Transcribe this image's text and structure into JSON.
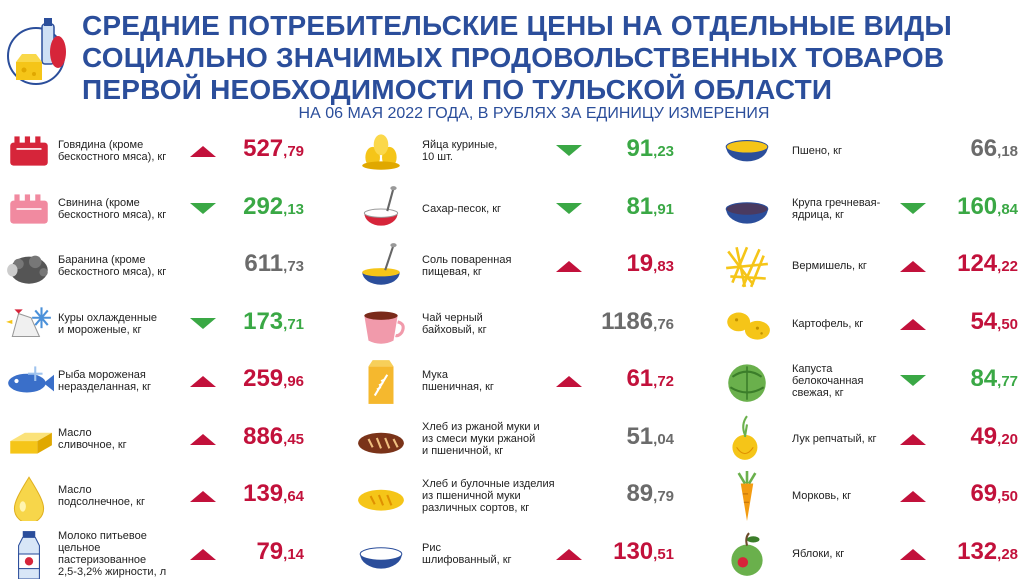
{
  "header": {
    "title_lines": [
      "СРЕДНИЕ ПОТРЕБИТЕЛЬСКИЕ ЦЕНЫ НА ОТДЕЛЬНЫЕ ВИДЫ",
      "СОЦИАЛЬНО ЗНАЧИМЫХ ПРОДОВОЛЬСТВЕННЫХ ТОВАРОВ",
      "ПЕРВОЙ НЕОБХОДИМОСТИ ПО ТУЛЬСКОЙ ОБЛАСТИ"
    ],
    "subtitle": "НА 06 МАЯ 2022 ГОДА, В РУБЛЯХ ЗА ЕДИНИЦУ ИЗМЕРЕНИЯ",
    "logo_icon": "groceries-icon"
  },
  "colors": {
    "title": "#2b4e9b",
    "up": "#c2113b",
    "down": "#3aa845",
    "same": "#6b6b6b"
  },
  "columns": [
    [
      {
        "label": "Говядина (кроме\nбескостного мяса), кг",
        "int": "527",
        "dec": "79",
        "trend": "up",
        "icon": "beef-icon"
      },
      {
        "label": "Свинина (кроме\nбескостного мяса), кг",
        "int": "292",
        "dec": "13",
        "trend": "down",
        "icon": "pork-icon"
      },
      {
        "label": "Баранина (кроме\nбескостного мяса), кг",
        "int": "611",
        "dec": "73",
        "trend": "same",
        "icon": "lamb-icon"
      },
      {
        "label": "Куры охлажденные\nи мороженые, кг",
        "int": "173",
        "dec": "71",
        "trend": "down",
        "icon": "chicken-icon"
      },
      {
        "label": "Рыба мороженая\nнеразделанная, кг",
        "int": "259",
        "dec": "96",
        "trend": "up",
        "icon": "fish-icon"
      },
      {
        "label": "Масло\nсливочное, кг",
        "int": "886",
        "dec": "45",
        "trend": "up",
        "icon": "butter-icon"
      },
      {
        "label": "Масло\nподсолнечное, кг",
        "int": "139",
        "dec": "64",
        "trend": "up",
        "icon": "oil-drop-icon"
      },
      {
        "label": "Молоко питьевое\nцельное\nпастеризованное\n2,5-3,2% жирности, л",
        "int": "79",
        "dec": "14",
        "trend": "up",
        "icon": "milk-bottle-icon"
      }
    ],
    [
      {
        "label": "Яйца куриные,\n10 шт.",
        "int": "91",
        "dec": "23",
        "trend": "down",
        "icon": "eggs-icon"
      },
      {
        "label": "Сахар-песок, кг",
        "int": "81",
        "dec": "91",
        "trend": "down",
        "icon": "sugar-bowl-icon"
      },
      {
        "label": "Соль поваренная\nпищевая, кг",
        "int": "19",
        "dec": "83",
        "trend": "up",
        "icon": "salt-bowl-icon"
      },
      {
        "label": "Чай черный\nбайховый, кг",
        "int": "1186",
        "dec": "76",
        "trend": "same",
        "icon": "tea-cup-icon"
      },
      {
        "label": "Мука\nпшеничная, кг",
        "int": "61",
        "dec": "72",
        "trend": "up",
        "icon": "flour-bag-icon"
      },
      {
        "label": "Хлеб из ржаной муки и\nиз смеси муки ржаной\nи пшеничной, кг",
        "int": "51",
        "dec": "04",
        "trend": "same",
        "icon": "rye-bread-icon"
      },
      {
        "label": "Хлеб и булочные изделия\nиз пшеничной муки\nразличных сортов, кг",
        "int": "89",
        "dec": "79",
        "trend": "same",
        "icon": "wheat-bread-icon"
      },
      {
        "label": "Рис\nшлифованный, кг",
        "int": "130",
        "dec": "51",
        "trend": "up",
        "icon": "rice-bowl-icon"
      }
    ],
    [
      {
        "label": "Пшено, кг",
        "int": "66",
        "dec": "18",
        "trend": "same",
        "icon": "millet-bowl-icon"
      },
      {
        "label": "Крупа гречневая-\nядрица, кг",
        "int": "160",
        "dec": "84",
        "trend": "down",
        "icon": "buckwheat-bowl-icon"
      },
      {
        "label": "Вермишель, кг",
        "int": "124",
        "dec": "22",
        "trend": "up",
        "icon": "pasta-icon"
      },
      {
        "label": "Картофель, кг",
        "int": "54",
        "dec": "50",
        "trend": "up",
        "icon": "potato-icon"
      },
      {
        "label": "Капуста\nбелокочанная\nсвежая, кг",
        "int": "84",
        "dec": "77",
        "trend": "down",
        "icon": "cabbage-icon"
      },
      {
        "label": "Лук репчатый, кг",
        "int": "49",
        "dec": "20",
        "trend": "up",
        "icon": "onion-icon"
      },
      {
        "label": "Морковь, кг",
        "int": "69",
        "dec": "50",
        "trend": "up",
        "icon": "carrot-icon"
      },
      {
        "label": "Яблоки, кг",
        "int": "132",
        "dec": "28",
        "trend": "up",
        "icon": "apple-icon"
      }
    ]
  ]
}
